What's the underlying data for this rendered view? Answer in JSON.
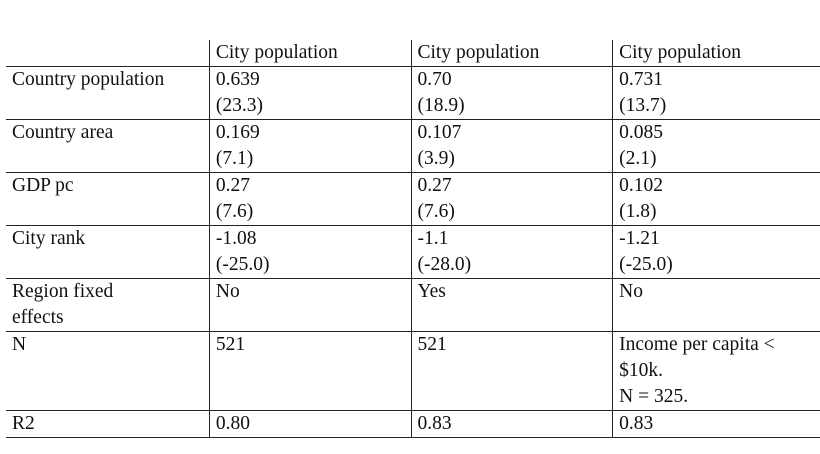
{
  "table": {
    "headers": [
      "",
      "City population",
      "City population",
      "City population"
    ],
    "rows": [
      {
        "label": [
          "Country population"
        ],
        "c1": [
          "0.639",
          "(23.3)"
        ],
        "c2": [
          "0.70",
          "(18.9)"
        ],
        "c3": [
          "0.731",
          "(13.7)"
        ]
      },
      {
        "label": [
          "Country area"
        ],
        "c1": [
          "0.169",
          "(7.1)"
        ],
        "c2": [
          "0.107",
          "(3.9)"
        ],
        "c3": [
          "0.085",
          "(2.1)"
        ]
      },
      {
        "label": [
          "GDP pc"
        ],
        "c1": [
          "0.27",
          "(7.6)"
        ],
        "c2": [
          "0.27",
          "(7.6)"
        ],
        "c3": [
          "0.102",
          "(1.8)"
        ]
      },
      {
        "label": [
          "City rank"
        ],
        "c1": [
          "-1.08",
          "(-25.0)"
        ],
        "c2": [
          "-1.1",
          "(-28.0)"
        ],
        "c3": [
          "-1.21",
          "(-25.0)"
        ]
      },
      {
        "label": [
          "Region fixed",
          "effects"
        ],
        "c1": [
          "No"
        ],
        "c2": [
          "Yes"
        ],
        "c3": [
          "No"
        ]
      },
      {
        "label": [
          "N"
        ],
        "c1": [
          "521"
        ],
        "c2": [
          "521"
        ],
        "c3": [
          "Income per capita <",
          "$10k.",
          "N = 325."
        ]
      },
      {
        "label": [
          "R2"
        ],
        "c1": [
          "0.80"
        ],
        "c2": [
          "0.83"
        ],
        "c3": [
          "0.83"
        ]
      }
    ]
  }
}
